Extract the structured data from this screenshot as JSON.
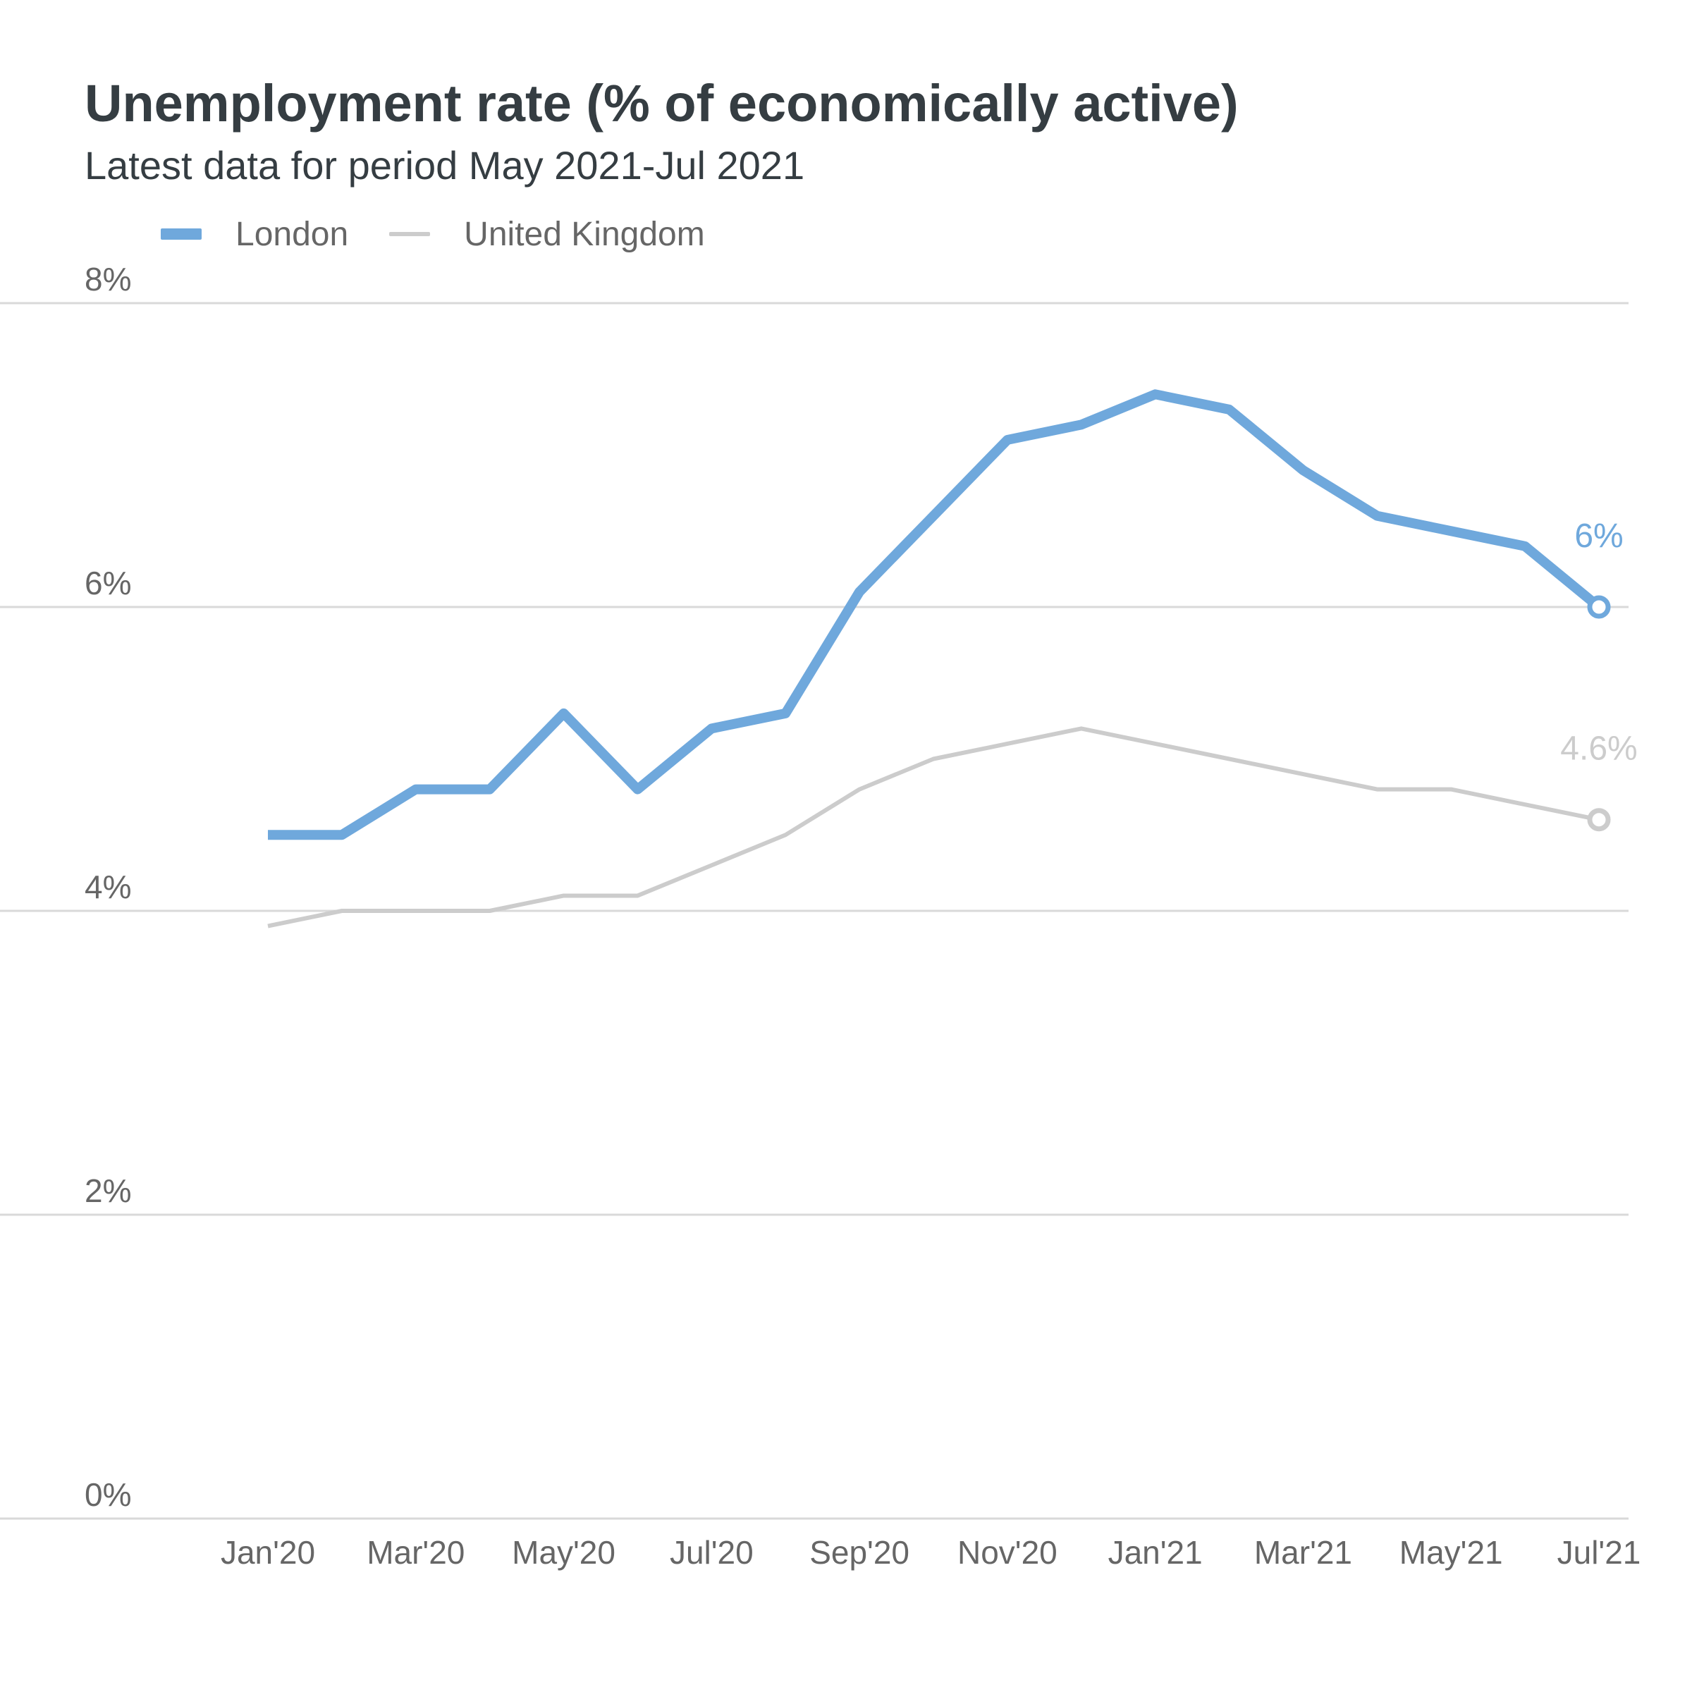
{
  "chart_data": {
    "type": "line",
    "title": "Unemployment rate (% of economically active)",
    "subtitle": "Latest data for period May 2021-Jul 2021",
    "xlabel": "",
    "ylabel": "",
    "ylim": [
      0,
      8
    ],
    "y_ticks": [
      {
        "value": 0,
        "label": "0%"
      },
      {
        "value": 2,
        "label": "2%"
      },
      {
        "value": 4,
        "label": "4%"
      },
      {
        "value": 6,
        "label": "6%"
      },
      {
        "value": 8,
        "label": "8%"
      }
    ],
    "x": [
      "Jan'20",
      "Feb'20",
      "Mar'20",
      "Apr'20",
      "May'20",
      "Jun'20",
      "Jul'20",
      "Aug'20",
      "Sep'20",
      "Oct'20",
      "Nov'20",
      "Dec'20",
      "Jan'21",
      "Feb'21",
      "Mar'21",
      "Apr'21",
      "May'21",
      "Jun'21",
      "Jul'21"
    ],
    "x_tick_labels": [
      "Jan'20",
      "Mar'20",
      "May'20",
      "Jul'20",
      "Sep'20",
      "Nov'20",
      "Jan'21",
      "Mar'21",
      "May'21",
      "Jul'21"
    ],
    "series": [
      {
        "name": "London",
        "color": "#6fa8dc",
        "values": [
          4.5,
          4.5,
          4.8,
          4.8,
          5.3,
          4.8,
          5.2,
          5.3,
          6.1,
          6.6,
          7.1,
          7.2,
          7.4,
          7.3,
          6.9,
          6.6,
          6.5,
          6.4,
          6.0
        ],
        "end_label": "6%"
      },
      {
        "name": "United Kingdom",
        "color": "#cccccc",
        "values": [
          3.9,
          4.0,
          4.0,
          4.0,
          4.1,
          4.1,
          4.3,
          4.5,
          4.8,
          5.0,
          5.1,
          5.2,
          5.1,
          5.0,
          4.9,
          4.8,
          4.8,
          4.7,
          4.6
        ],
        "end_label": "4.6%"
      }
    ],
    "grid": true,
    "legend_position": "top-left"
  }
}
